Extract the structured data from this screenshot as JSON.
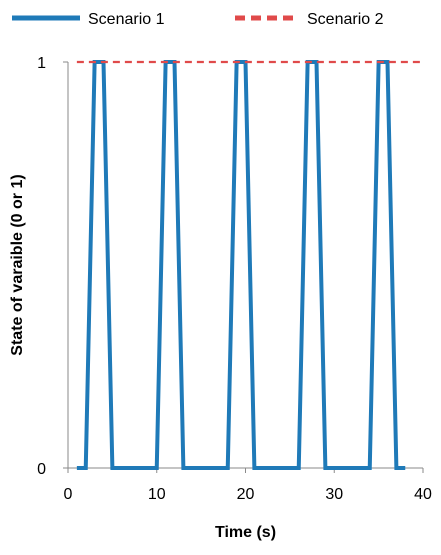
{
  "chart_data": {
    "type": "line",
    "title": "",
    "xlabel": "Time (s)",
    "ylabel": "State of varaible (0 or 1)",
    "xlim": [
      0,
      40
    ],
    "ylim": [
      0,
      1
    ],
    "x_ticks": [
      "0",
      "10",
      "20",
      "30",
      "40"
    ],
    "y_ticks": [
      "0",
      "1"
    ],
    "grid": false,
    "legend_position": "top",
    "series": [
      {
        "name": "Scenario 1",
        "color": "#1f7ab8",
        "style": "solid",
        "x": [
          1,
          2,
          3,
          4,
          5,
          10,
          11,
          12,
          13,
          18,
          19,
          20,
          21,
          26,
          27,
          28,
          29,
          34,
          35,
          36,
          37,
          38
        ],
        "y": [
          0,
          0,
          1,
          1,
          0,
          0,
          1,
          1,
          0,
          0,
          1,
          1,
          0,
          0,
          1,
          1,
          0,
          0,
          1,
          1,
          0,
          0
        ]
      },
      {
        "name": "Scenario 2",
        "color": "#e04a4a",
        "style": "dashed",
        "x": [
          1,
          40
        ],
        "y": [
          1,
          1
        ]
      }
    ]
  }
}
